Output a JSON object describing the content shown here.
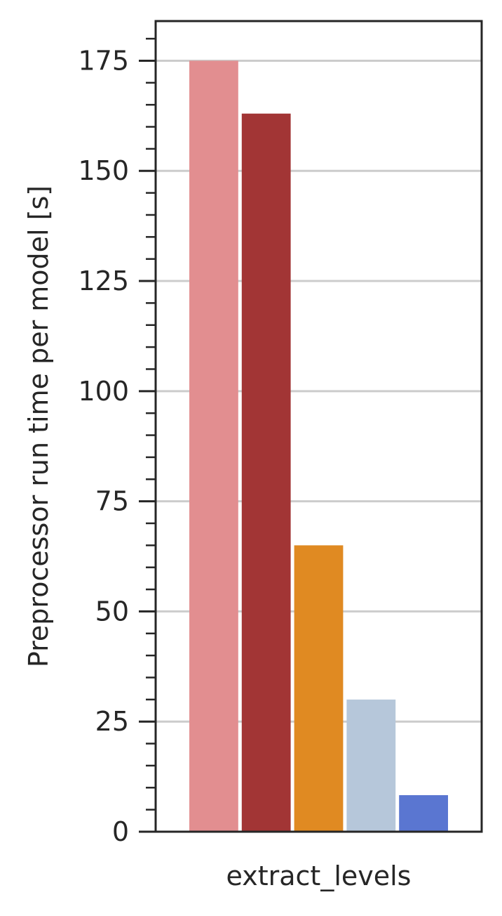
{
  "chart_data": {
    "type": "bar",
    "categories": [
      "extract_levels"
    ],
    "series": [
      {
        "values": [
          175
        ],
        "color": "#e28e90"
      },
      {
        "values": [
          163
        ],
        "color": "#a23535"
      },
      {
        "values": [
          65
        ],
        "color": "#e08a22"
      },
      {
        "values": [
          30
        ],
        "color": "#b6c7da"
      },
      {
        "values": [
          8.3
        ],
        "color": "#5a76d1"
      }
    ],
    "title": "",
    "xlabel": "",
    "ylabel": "Preprocessor run time per model [s]",
    "ylim": [
      0,
      184
    ],
    "yticks": [
      0,
      25,
      50,
      75,
      100,
      125,
      150,
      175
    ],
    "minor_tick_step": 5,
    "grid": "y-major",
    "legend": "none"
  }
}
